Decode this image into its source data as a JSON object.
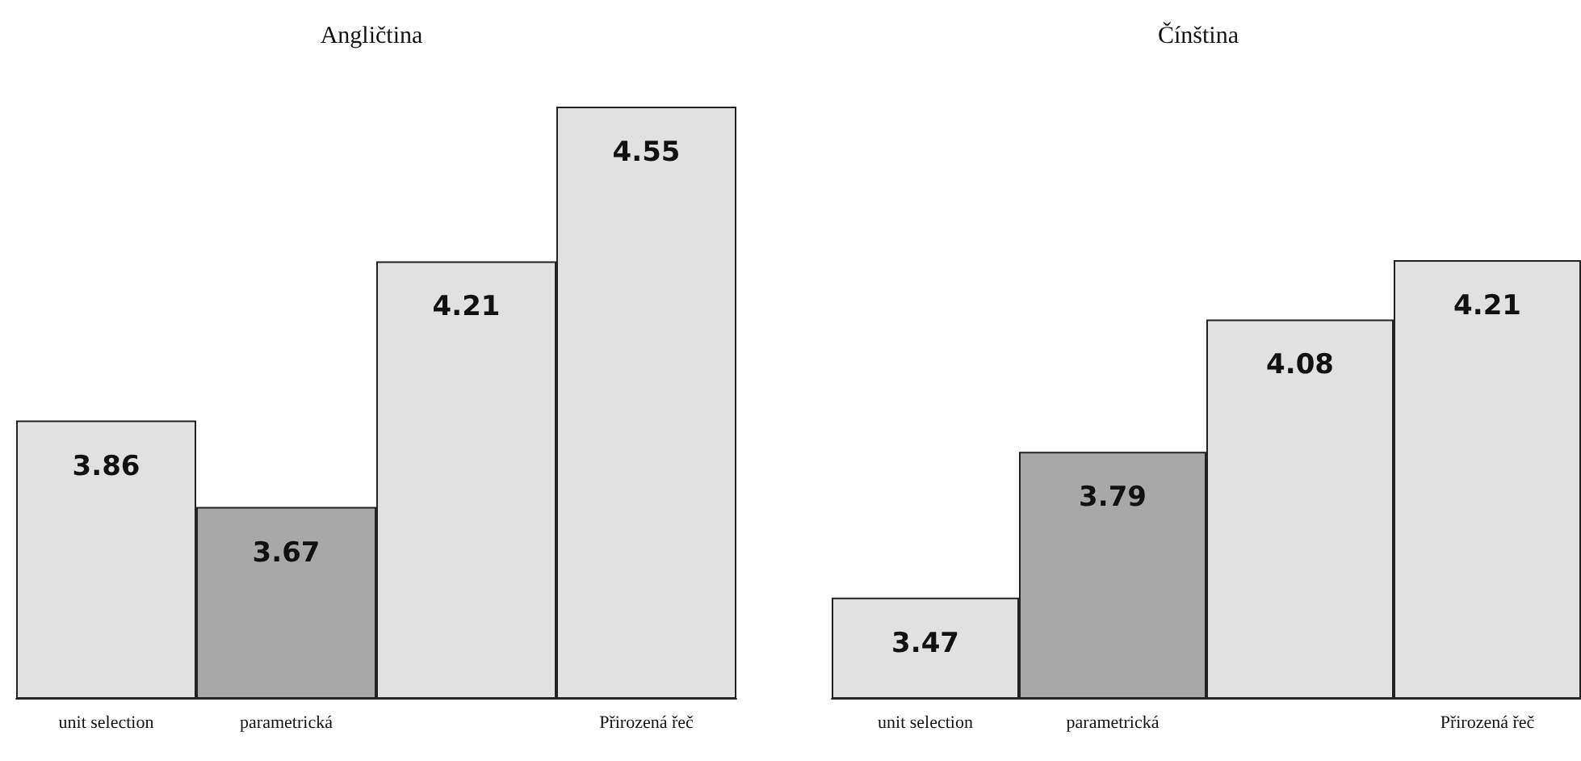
{
  "chart_data": [
    {
      "type": "bar",
      "title": "Angličtina",
      "categories": [
        "unit selection",
        "parametrická",
        null,
        "Přirozená řeč"
      ],
      "values": [
        3.86,
        3.67,
        4.21,
        4.55
      ],
      "colors": [
        "#e1e1e1",
        "#a8a8a8",
        "#e1e1e1",
        "#e1e1e1"
      ],
      "ylim": [
        3.25,
        4.55
      ],
      "data_labels": true,
      "tick_labels": "x"
    },
    {
      "type": "bar",
      "title": "Čínština",
      "categories": [
        "unit selection",
        "parametrická",
        null,
        "Přirozená řeč"
      ],
      "values": [
        3.47,
        3.79,
        4.08,
        4.21
      ],
      "colors": [
        "#e1e1e1",
        "#a8a8a8",
        "#e1e1e1",
        "#e1e1e1"
      ],
      "ylim": [
        3.25,
        4.21
      ],
      "data_labels": true,
      "tick_labels": "x"
    }
  ]
}
